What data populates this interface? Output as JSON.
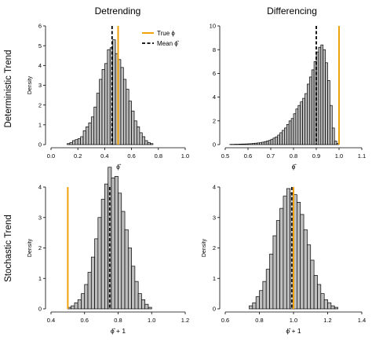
{
  "column_titles": [
    "Detrending",
    "Differencing"
  ],
  "row_titles": [
    "Deterministic Trend",
    "Stochastic Trend"
  ],
  "legend": {
    "position": "top-right",
    "true_label": "True ϕ",
    "mean_label": "Mean ϕ̂",
    "true_color": "#F0A20A",
    "mean_color": "#000000"
  },
  "colors": {
    "bar_fill": "#BEBEBE",
    "bar_stroke": "#000000",
    "true_line": "#F0A20A",
    "mean_line": "#000000"
  },
  "chart_data": [
    {
      "id": "det-detrend",
      "type": "bar",
      "column": "Detrending",
      "row": "Deterministic Trend",
      "xlabel": "ϕ̂",
      "ylabel": "Density",
      "xlim": [
        0.0,
        1.0
      ],
      "ylim": [
        0,
        6
      ],
      "xticks": [
        "0.0",
        "0.2",
        "0.4",
        "0.6",
        "0.8",
        "1.0"
      ],
      "yticks": [
        "0",
        "1",
        "2",
        "3",
        "4",
        "5",
        "6"
      ],
      "xtick_values": [
        0.0,
        0.2,
        0.4,
        0.6,
        0.8,
        1.0
      ],
      "ytick_values": [
        0,
        1,
        2,
        3,
        4,
        5,
        6
      ],
      "bin_width": 0.02,
      "x": [
        0.13,
        0.15,
        0.17,
        0.19,
        0.21,
        0.23,
        0.25,
        0.27,
        0.29,
        0.31,
        0.33,
        0.35,
        0.37,
        0.39,
        0.41,
        0.43,
        0.45,
        0.47,
        0.49,
        0.51,
        0.53,
        0.55,
        0.57,
        0.59,
        0.61,
        0.63,
        0.65,
        0.67,
        0.69,
        0.71,
        0.73,
        0.75
      ],
      "values": [
        0.05,
        0.1,
        0.2,
        0.25,
        0.3,
        0.4,
        0.7,
        0.9,
        1.1,
        1.4,
        1.9,
        2.6,
        3.3,
        3.8,
        4.1,
        4.8,
        4.9,
        5.3,
        4.6,
        4.3,
        3.9,
        3.3,
        2.8,
        2.2,
        1.7,
        1.2,
        0.9,
        0.6,
        0.4,
        0.2,
        0.1,
        0.05
      ],
      "true_value": 0.5,
      "mean_value": 0.455
    },
    {
      "id": "det-diff",
      "type": "bar",
      "column": "Differencing",
      "row": "Deterministic Trend",
      "xlabel": "ϕ̂",
      "ylabel": "",
      "xlim": [
        0.5,
        1.1
      ],
      "ylim": [
        0,
        10
      ],
      "xticks": [
        "0.5",
        "0.6",
        "0.7",
        "0.8",
        "0.9",
        "1.0",
        "1.1"
      ],
      "yticks": [
        "0",
        "2",
        "4",
        "6",
        "8",
        "10"
      ],
      "xtick_values": [
        0.5,
        0.6,
        0.7,
        0.8,
        0.9,
        1.0,
        1.1
      ],
      "ytick_values": [
        0,
        2,
        4,
        6,
        8,
        10
      ],
      "bin_width": 0.01,
      "x": [
        0.525,
        0.535,
        0.545,
        0.555,
        0.565,
        0.575,
        0.585,
        0.595,
        0.605,
        0.615,
        0.625,
        0.635,
        0.645,
        0.655,
        0.665,
        0.675,
        0.685,
        0.695,
        0.705,
        0.715,
        0.725,
        0.735,
        0.745,
        0.755,
        0.765,
        0.775,
        0.785,
        0.795,
        0.805,
        0.815,
        0.825,
        0.835,
        0.845,
        0.855,
        0.865,
        0.875,
        0.885,
        0.895,
        0.905,
        0.915,
        0.925,
        0.935,
        0.945,
        0.955,
        0.965,
        0.975,
        0.985,
        0.995
      ],
      "values": [
        0.02,
        0.02,
        0.03,
        0.03,
        0.04,
        0.05,
        0.05,
        0.06,
        0.07,
        0.08,
        0.1,
        0.12,
        0.14,
        0.16,
        0.2,
        0.25,
        0.3,
        0.35,
        0.45,
        0.55,
        0.65,
        0.8,
        1.0,
        1.2,
        1.4,
        1.7,
        2.0,
        2.2,
        2.6,
        3.0,
        3.3,
        3.6,
        3.9,
        4.3,
        5.1,
        5.7,
        6.3,
        7.0,
        7.8,
        8.2,
        8.4,
        8.0,
        6.9,
        5.4,
        3.3,
        1.4,
        0.3,
        0.1
      ],
      "true_value": 1.0,
      "mean_value": 0.9
    },
    {
      "id": "sto-detrend",
      "type": "bar",
      "column": "Detrending",
      "row": "Stochastic Trend",
      "xlabel": "ϕ̂ + 1",
      "ylabel": "Density",
      "xlim": [
        0.4,
        1.2
      ],
      "ylim": [
        0,
        4
      ],
      "xticks": [
        "0.4",
        "0.6",
        "0.8",
        "1.0",
        "1.2"
      ],
      "yticks": [
        "0",
        "1",
        "2",
        "3",
        "4"
      ],
      "xtick_values": [
        0.4,
        0.6,
        0.8,
        1.0,
        1.2
      ],
      "ytick_values": [
        0,
        1,
        2,
        3,
        4
      ],
      "bin_width": 0.02,
      "x": [
        0.51,
        0.53,
        0.55,
        0.57,
        0.59,
        0.61,
        0.63,
        0.65,
        0.67,
        0.69,
        0.71,
        0.73,
        0.75,
        0.77,
        0.79,
        0.81,
        0.83,
        0.85,
        0.87,
        0.89,
        0.91,
        0.93,
        0.95,
        0.97,
        0.99
      ],
      "values": [
        0.05,
        0.1,
        0.2,
        0.3,
        0.5,
        0.8,
        1.2,
        1.7,
        2.3,
        3.0,
        3.6,
        4.1,
        4.65,
        4.3,
        4.35,
        3.8,
        3.2,
        2.6,
        2.0,
        1.4,
        0.9,
        0.5,
        0.3,
        0.15,
        0.05
      ],
      "true_value": 0.5,
      "mean_value": 0.75
    },
    {
      "id": "sto-diff",
      "type": "bar",
      "column": "Differencing",
      "row": "Stochastic Trend",
      "xlabel": "ϕ̂ + 1",
      "ylabel": "Density",
      "xlim": [
        0.6,
        1.4
      ],
      "ylim": [
        0,
        4
      ],
      "xticks": [
        "0.6",
        "0.8",
        "1.0",
        "1.2",
        "1.4"
      ],
      "yticks": [
        "0",
        "1",
        "2",
        "3",
        "4"
      ],
      "xtick_values": [
        0.6,
        0.8,
        1.0,
        1.2,
        1.4
      ],
      "ytick_values": [
        0,
        1,
        2,
        3,
        4
      ],
      "bin_width": 0.02,
      "x": [
        0.75,
        0.77,
        0.79,
        0.81,
        0.83,
        0.85,
        0.87,
        0.89,
        0.91,
        0.93,
        0.95,
        0.97,
        0.99,
        1.01,
        1.03,
        1.05,
        1.07,
        1.09,
        1.11,
        1.13,
        1.15,
        1.17,
        1.19,
        1.21,
        1.23,
        1.25
      ],
      "values": [
        0.1,
        0.2,
        0.4,
        0.6,
        0.9,
        1.3,
        1.8,
        2.4,
        2.9,
        3.3,
        3.7,
        3.95,
        3.8,
        3.75,
        3.5,
        3.1,
        2.6,
        2.1,
        1.6,
        1.1,
        0.8,
        0.5,
        0.3,
        0.2,
        0.1,
        0.05
      ],
      "true_value": 1.0,
      "mean_value": 0.99
    }
  ]
}
